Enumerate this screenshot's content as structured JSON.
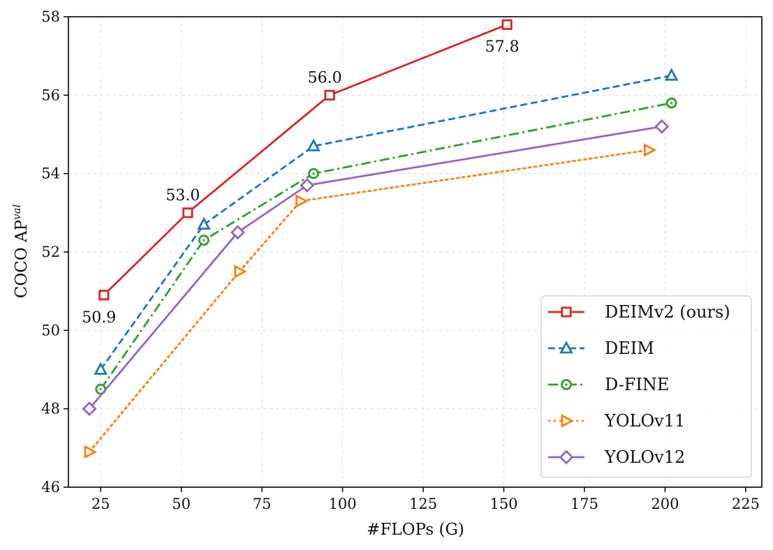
{
  "chart_data": {
    "type": "line",
    "title": "",
    "xlabel": "#FLOPs (G)",
    "ylabel": {
      "main": "COCO AP",
      "sup": "val"
    },
    "xlim": [
      15,
      230
    ],
    "ylim": [
      46,
      58
    ],
    "xticks": [
      25,
      50,
      75,
      100,
      125,
      150,
      175,
      200,
      225
    ],
    "yticks": [
      46,
      48,
      50,
      52,
      54,
      56,
      58
    ],
    "grid": true,
    "legend_position": "bottom-right",
    "series": [
      {
        "name": "DEIMv2 (ours)",
        "color": "#d62728",
        "dash": "solid",
        "marker": "square",
        "points": [
          [
            26,
            50.9
          ],
          [
            52,
            53.0
          ],
          [
            96,
            56.0
          ],
          [
            151,
            57.8
          ]
        ]
      },
      {
        "name": "DEIM",
        "color": "#1f77b4",
        "dash": "dashed",
        "marker": "triangle",
        "points": [
          [
            25,
            49.0
          ],
          [
            57,
            52.7
          ],
          [
            91,
            54.7
          ],
          [
            202,
            56.5
          ]
        ]
      },
      {
        "name": "D-FINE",
        "color": "#2ca02c",
        "dash": "dashdot",
        "marker": "circle",
        "points": [
          [
            25,
            48.5
          ],
          [
            57,
            52.3
          ],
          [
            91,
            54.0
          ],
          [
            202,
            55.8
          ]
        ]
      },
      {
        "name": "YOLOv11",
        "color": "#ff7f0e",
        "dash": "dotted",
        "marker": "triangle-right",
        "points": [
          [
            21.5,
            46.9
          ],
          [
            68,
            51.5
          ],
          [
            87,
            53.3
          ],
          [
            195,
            54.6
          ]
        ]
      },
      {
        "name": "YOLOv12",
        "color": "#9467bd",
        "dash": "solid",
        "marker": "diamond",
        "points": [
          [
            21.5,
            48.0
          ],
          [
            67.5,
            52.5
          ],
          [
            89,
            53.7
          ],
          [
            199,
            55.2
          ]
        ]
      }
    ],
    "annotations": [
      {
        "text": "50.9",
        "x": 26,
        "y": 50.9,
        "placement": "below"
      },
      {
        "text": "53.0",
        "x": 52,
        "y": 53.0,
        "placement": "above"
      },
      {
        "text": "56.0",
        "x": 96,
        "y": 56.0,
        "placement": "above"
      },
      {
        "text": "57.8",
        "x": 151,
        "y": 57.8,
        "placement": "below"
      }
    ]
  }
}
